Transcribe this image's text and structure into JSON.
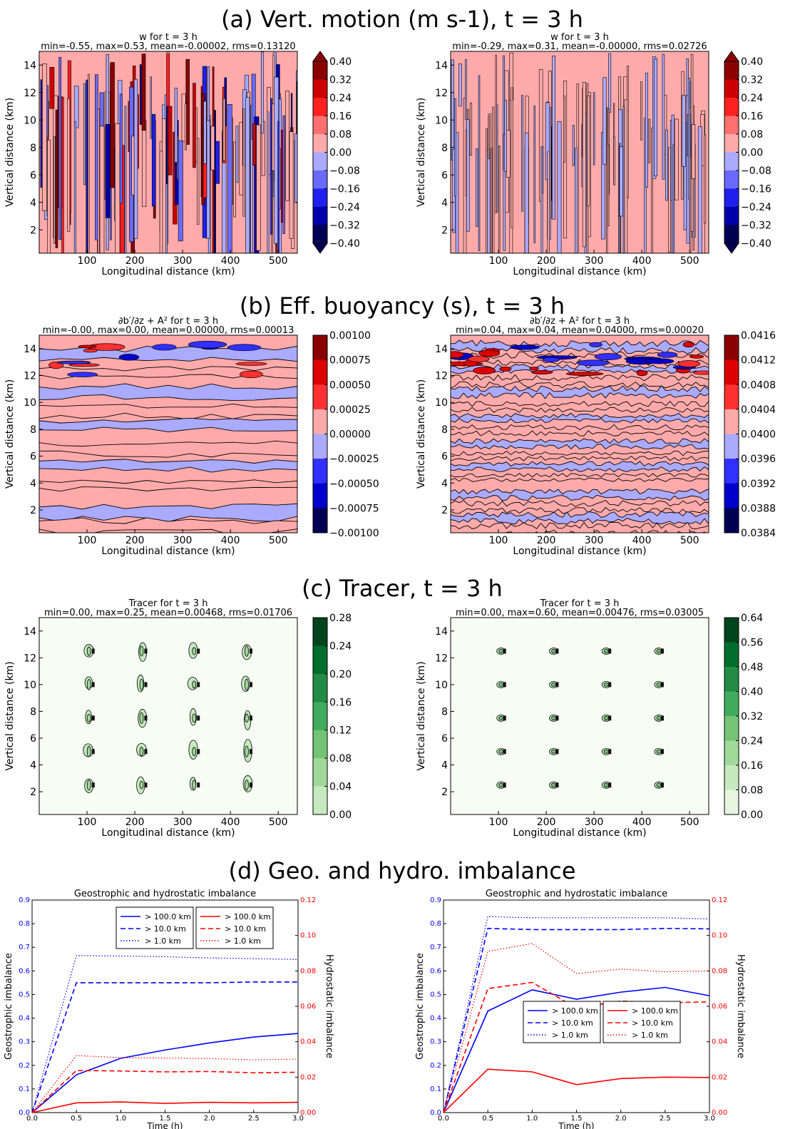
{
  "sections": [
    {
      "id": "a",
      "title": "(a) Vert. motion (m s-1), t = 3 h"
    },
    {
      "id": "b",
      "title": "(b) Eff. buoyancy (s), t = 3 h"
    },
    {
      "id": "c",
      "title": "(c) Tracer, t = 3 h"
    },
    {
      "id": "d",
      "title": "(d) Geo. and hydro. imbalance"
    }
  ],
  "chart_data": [
    {
      "type": "heatmap",
      "section": "a",
      "panel": "left",
      "title": "w for t = 3 h",
      "subtitle": "min=-0.55, max=0.53, mean=-0.00002, rms=0.13120",
      "xlabel": "Longitudinal distance (km)",
      "ylabel": "Vertical distance (km)",
      "xlim": [
        0,
        540
      ],
      "ylim": [
        0.3,
        15
      ],
      "xticks": [
        100,
        200,
        300,
        400,
        500
      ],
      "yticks": [
        2,
        4,
        6,
        8,
        10,
        12,
        14
      ],
      "colorbar": {
        "levels": [
          "0.40",
          "0.32",
          "0.24",
          "0.16",
          "0.08",
          "0.00",
          "−0.08",
          "−0.16",
          "−0.24",
          "−0.32",
          "−0.40"
        ],
        "colors": [
          "#8b0000",
          "#cc0000",
          "#ff2020",
          "#ff7070",
          "#ffaaaa",
          "#aaaaff",
          "#6a6aff",
          "#2020ee",
          "#0000aa",
          "#000055"
        ],
        "extend": "both"
      },
      "pattern": "vertical-stripes-strong"
    },
    {
      "type": "heatmap",
      "section": "a",
      "panel": "right",
      "title": "w for t = 3 h",
      "subtitle": "min=-0.29, max=0.31, mean=-0.00000, rms=0.02726",
      "xlabel": "Longitudinal distance (km)",
      "ylabel": "Vertical distance (km)",
      "xlim": [
        0,
        540
      ],
      "ylim": [
        0.3,
        15
      ],
      "xticks": [
        100,
        200,
        300,
        400,
        500
      ],
      "yticks": [
        2,
        4,
        6,
        8,
        10,
        12,
        14
      ],
      "colorbar": {
        "levels": [
          "0.40",
          "0.32",
          "0.24",
          "0.16",
          "0.08",
          "0.00",
          "−0.08",
          "−0.16",
          "−0.24",
          "−0.32",
          "−0.40"
        ],
        "colors": [
          "#8b0000",
          "#cc0000",
          "#ff2020",
          "#ff7070",
          "#ffaaaa",
          "#aaaaff",
          "#6a6aff",
          "#2020ee",
          "#0000aa",
          "#000055"
        ],
        "extend": "both"
      },
      "pattern": "vertical-stripes-weak"
    },
    {
      "type": "heatmap",
      "section": "b",
      "panel": "left",
      "title": "∂b′/∂z + A² for t = 3 h",
      "subtitle": "min=-0.00, max=0.00, mean=0.00000, rms=0.00013",
      "xlabel": "Longitudinal distance (km)",
      "ylabel": "Vertical distance (km)",
      "xlim": [
        0,
        540
      ],
      "ylim": [
        0.3,
        15
      ],
      "xticks": [
        100,
        200,
        300,
        400,
        500
      ],
      "yticks": [
        2,
        4,
        6,
        8,
        10,
        12,
        14
      ],
      "colorbar": {
        "levels": [
          "0.00100",
          "0.00075",
          "0.00050",
          "0.00025",
          "0.00000",
          "−0.00025",
          "−0.00050",
          "−0.00075",
          "−0.00100"
        ],
        "colors": [
          "#8b0000",
          "#dd0000",
          "#ff3030",
          "#ffaaaa",
          "#aaaaff",
          "#3030ff",
          "#0000cc",
          "#000055"
        ],
        "extend": "neither"
      },
      "pattern": "horizontal-bands-smooth"
    },
    {
      "type": "heatmap",
      "section": "b",
      "panel": "right",
      "title": "∂b′/∂z + A² for t = 3 h",
      "subtitle": "min=0.04, max=0.04, mean=0.04000, rms=0.00020",
      "xlabel": "Longitudinal distance (km)",
      "ylabel": "Vertical distance (km)",
      "xlim": [
        0,
        540
      ],
      "ylim": [
        0.3,
        15
      ],
      "xticks": [
        100,
        200,
        300,
        400,
        500
      ],
      "yticks": [
        2,
        4,
        6,
        8,
        10,
        12,
        14
      ],
      "colorbar": {
        "levels": [
          "0.0416",
          "0.0412",
          "0.0408",
          "0.0404",
          "0.0400",
          "0.0396",
          "0.0392",
          "0.0388",
          "0.0384"
        ],
        "colors": [
          "#8b0000",
          "#dd0000",
          "#ff3030",
          "#ffaaaa",
          "#aaaaff",
          "#3030ff",
          "#0000cc",
          "#000055"
        ],
        "extend": "neither"
      },
      "pattern": "horizontal-bands-rough"
    },
    {
      "type": "heatmap",
      "section": "c",
      "panel": "left",
      "title": "Tracer for t = 3 h",
      "subtitle": "min=0.00, max=0.25, mean=0.00468, rms=0.01706",
      "xlabel": "Longitudinal distance (km)",
      "ylabel": "Vertical distance (km)",
      "xlim": [
        0,
        540
      ],
      "ylim": [
        0.3,
        15
      ],
      "xticks": [
        100,
        200,
        300,
        400,
        500
      ],
      "yticks": [
        2,
        4,
        6,
        8,
        10,
        12,
        14
      ],
      "colorbar": {
        "levels": [
          "0.28",
          "0.24",
          "0.20",
          "0.16",
          "0.12",
          "0.08",
          "0.04",
          "0.00"
        ],
        "colors": [
          "#00441b",
          "#006d2c",
          "#238b45",
          "#41ab5d",
          "#74c476",
          "#a1d99b",
          "#c7e9c0"
        ],
        "extend": "neither"
      },
      "sources_x": [
        110,
        220,
        330,
        440
      ],
      "sources_z": [
        2.5,
        5,
        7.5,
        10,
        12.5
      ],
      "pattern": "tracer-spread"
    },
    {
      "type": "heatmap",
      "section": "c",
      "panel": "right",
      "title": "Tracer for t = 3 h",
      "subtitle": "min=0.00, max=0.60, mean=0.00476, rms=0.03005",
      "xlabel": "Longitudinal distance (km)",
      "ylabel": "Vertical distance (km)",
      "xlim": [
        0,
        540
      ],
      "ylim": [
        0.3,
        15
      ],
      "xticks": [
        100,
        200,
        300,
        400,
        500
      ],
      "yticks": [
        2,
        4,
        6,
        8,
        10,
        12,
        14
      ],
      "colorbar": {
        "levels": [
          "0.64",
          "0.56",
          "0.48",
          "0.40",
          "0.32",
          "0.24",
          "0.16",
          "0.08",
          "0.00"
        ],
        "colors": [
          "#00441b",
          "#006d2c",
          "#238b45",
          "#41ab5d",
          "#74c476",
          "#a1d99b",
          "#c7e9c0",
          "#e5f5e0"
        ],
        "extend": "neither"
      },
      "sources_x": [
        110,
        220,
        330,
        440
      ],
      "sources_z": [
        2.5,
        5,
        7.5,
        10,
        12.5
      ],
      "pattern": "tracer-compact"
    },
    {
      "type": "line",
      "section": "d",
      "panel": "left",
      "title": "Geostrophic and hydrostatic imbalance",
      "xlabel": "Time (h)",
      "ylabel": "Geostrophic imbalance",
      "y2label": "Hydrostatic imbalance",
      "xlim": [
        0,
        3
      ],
      "ylim": [
        0,
        0.9
      ],
      "y2lim": [
        0,
        0.12
      ],
      "xticks": [
        "0.0",
        "0.5",
        "1.0",
        "1.5",
        "2.0",
        "2.5",
        "3.0"
      ],
      "yticks": [
        "0.0",
        "0.1",
        "0.2",
        "0.3",
        "0.4",
        "0.5",
        "0.6",
        "0.7",
        "0.8",
        "0.9"
      ],
      "y2ticks": [
        "0.00",
        "0.02",
        "0.04",
        "0.06",
        "0.08",
        "0.10",
        "0.12"
      ],
      "x": [
        0,
        0.5,
        1.0,
        1.5,
        2.0,
        2.5,
        3.0
      ],
      "legend_position": "top-center",
      "legend_left": [
        "> 100.0 km",
        "> 10.0 km",
        "> 1.0 km"
      ],
      "legend_right": [
        "> 100.0 km",
        "> 10.0 km",
        "> 1.0 km"
      ],
      "series": [
        {
          "name": "> 100.0 km",
          "axis": "left",
          "color": "#0000ff",
          "dash": "solid",
          "values": [
            0.0,
            0.16,
            0.23,
            0.265,
            0.295,
            0.32,
            0.335
          ]
        },
        {
          "name": "> 10.0 km",
          "axis": "left",
          "color": "#0000ff",
          "dash": "dashed",
          "values": [
            0.0,
            0.55,
            0.55,
            0.55,
            0.55,
            0.553,
            0.553
          ]
        },
        {
          "name": "> 1.0 km",
          "axis": "left",
          "color": "#0000ff",
          "dash": "dotted",
          "values": [
            0.0,
            0.665,
            0.663,
            0.66,
            0.655,
            0.652,
            0.648
          ]
        },
        {
          "name": "> 100.0 km",
          "axis": "right",
          "color": "#ff0000",
          "dash": "solid",
          "values": [
            0.0,
            0.0055,
            0.006,
            0.0052,
            0.0058,
            0.0055,
            0.0058
          ]
        },
        {
          "name": "> 10.0 km",
          "axis": "right",
          "color": "#ff0000",
          "dash": "dashed",
          "values": [
            0.0,
            0.0238,
            0.0235,
            0.023,
            0.0232,
            0.0225,
            0.0228
          ]
        },
        {
          "name": "> 1.0 km",
          "axis": "right",
          "color": "#ff0000",
          "dash": "dotted",
          "values": [
            0.0,
            0.0322,
            0.031,
            0.0308,
            0.0305,
            0.0298,
            0.0302
          ]
        }
      ]
    },
    {
      "type": "line",
      "section": "d",
      "panel": "right",
      "title": "Geostrophic and hydrostatic imbalance",
      "xlabel": "Time (h)",
      "ylabel": "Geostrophic imbalance",
      "y2label": "Hydrostatic imbalance",
      "xlim": [
        0,
        3
      ],
      "ylim": [
        0,
        0.9
      ],
      "y2lim": [
        0,
        0.12
      ],
      "xticks": [
        "0.0",
        "0.5",
        "1.0",
        "1.5",
        "2.0",
        "2.5",
        "3.0"
      ],
      "yticks": [
        "0.0",
        "0.1",
        "0.2",
        "0.3",
        "0.4",
        "0.5",
        "0.6",
        "0.7",
        "0.8",
        "0.9"
      ],
      "y2ticks": [
        "0.00",
        "0.02",
        "0.04",
        "0.06",
        "0.08",
        "0.10",
        "0.12"
      ],
      "x": [
        0,
        0.5,
        1.0,
        1.5,
        2.0,
        2.5,
        3.0
      ],
      "legend_position": "center",
      "legend_left": [
        "> 100.0 km",
        "> 10.0 km",
        "> 1.0 km"
      ],
      "legend_right": [
        "> 100.0 km",
        "> 10.0 km",
        "> 1.0 km"
      ],
      "series": [
        {
          "name": "> 100.0 km",
          "axis": "left",
          "color": "#0000ff",
          "dash": "solid",
          "values": [
            0.0,
            0.43,
            0.52,
            0.48,
            0.51,
            0.53,
            0.495
          ]
        },
        {
          "name": "> 10.0 km",
          "axis": "left",
          "color": "#0000ff",
          "dash": "dashed",
          "values": [
            0.0,
            0.78,
            0.775,
            0.775,
            0.775,
            0.78,
            0.778
          ]
        },
        {
          "name": "> 1.0 km",
          "axis": "left",
          "color": "#0000ff",
          "dash": "dotted",
          "values": [
            0.0,
            0.83,
            0.825,
            0.825,
            0.825,
            0.825,
            0.82
          ]
        },
        {
          "name": "> 100.0 km",
          "axis": "right",
          "color": "#ff0000",
          "dash": "solid",
          "values": [
            0.0,
            0.0245,
            0.023,
            0.0158,
            0.0192,
            0.02,
            0.0198
          ]
        },
        {
          "name": "> 10.0 km",
          "axis": "right",
          "color": "#ff0000",
          "dash": "dashed",
          "values": [
            0.0,
            0.07,
            0.0735,
            0.059,
            0.063,
            0.062,
            0.0625
          ]
        },
        {
          "name": "> 1.0 km",
          "axis": "right",
          "color": "#ff0000",
          "dash": "dotted",
          "values": [
            0.0,
            0.091,
            0.0955,
            0.0785,
            0.081,
            0.0795,
            0.08
          ]
        }
      ]
    }
  ]
}
